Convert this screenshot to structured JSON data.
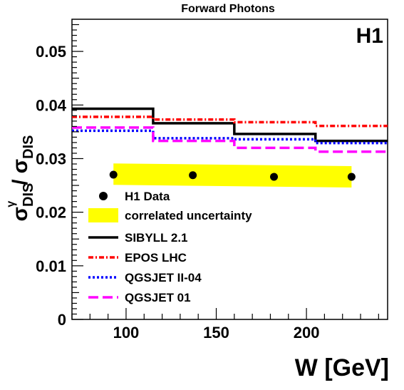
{
  "chart_data": {
    "type": "line",
    "title": "Forward Photons",
    "experiment_label": "H1",
    "xlabel": "W [GeV]",
    "ylabel": {
      "numerator_symbol": "σ",
      "numerator_superscript": "γ",
      "numerator_subscript": "DIS",
      "separator": "/",
      "denominator_symbol": "σ",
      "denominator_subscript": "DIS"
    },
    "xlim": [
      70,
      245
    ],
    "ylim": [
      0,
      0.056
    ],
    "x_ticks": [
      "100",
      "150",
      "200"
    ],
    "y_ticks": [
      "0",
      "0.01",
      "0.02",
      "0.03",
      "0.04",
      "0.05"
    ],
    "legend_position": "bottom-left",
    "bin_edges": [
      70,
      115,
      160,
      205,
      245
    ],
    "data": {
      "name": "H1 Data",
      "x": [
        93,
        137,
        182,
        225
      ],
      "y": [
        0.027,
        0.0269,
        0.0266,
        0.0266
      ],
      "color": "#000000"
    },
    "uncertainty_band": {
      "name": "correlated uncertainty",
      "x": [
        93,
        225
      ],
      "y_low": [
        0.0251,
        0.0246
      ],
      "y_high": [
        0.0291,
        0.0286
      ],
      "color": "#ffff00"
    },
    "series": [
      {
        "name": "SIBYLL 2.1",
        "values": [
          0.0393,
          0.0366,
          0.0346,
          0.0333
        ],
        "color": "#000000",
        "style": "solid"
      },
      {
        "name": "EPOS LHC",
        "values": [
          0.0378,
          0.0373,
          0.0368,
          0.0361
        ],
        "color": "#ff0000",
        "style": "dashdot"
      },
      {
        "name": "QGSJET II-04",
        "values": [
          0.0352,
          0.0338,
          0.0336,
          0.0329
        ],
        "color": "#0000ff",
        "style": "dotted"
      },
      {
        "name": "QGSJET 01",
        "values": [
          0.0358,
          0.0333,
          0.032,
          0.0313
        ],
        "color": "#ff00ff",
        "style": "dashed"
      }
    ]
  }
}
